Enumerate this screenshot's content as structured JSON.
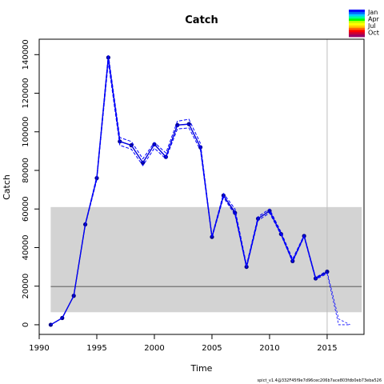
{
  "chart_data": {
    "type": "line",
    "title": "Catch",
    "xlabel": "Time",
    "ylabel": "Catch",
    "xlim": [
      1990,
      2018.2
    ],
    "ylim": [
      -5000,
      148000
    ],
    "xticks": [
      1990,
      1995,
      2000,
      2005,
      2010,
      2015
    ],
    "yticks": [
      0,
      20000,
      40000,
      60000,
      80000,
      100000,
      120000,
      140000
    ],
    "grid": false,
    "band": {
      "x": [
        1991,
        2018
      ],
      "y": [
        6500,
        61000
      ],
      "color": "#d3d3d3"
    },
    "hline": {
      "y": 19800,
      "color": "#808080"
    },
    "vline": {
      "x": 2015,
      "color": "#bebebe"
    },
    "series": [
      {
        "kind": "observed",
        "color": "#00008b",
        "x": [
          1991,
          1992,
          1993,
          1994,
          1995,
          1996,
          1997,
          1998,
          1999,
          2000,
          2001,
          2002,
          2003,
          2004,
          2005,
          2006,
          2007,
          2008,
          2009,
          2010,
          2011,
          2012,
          2013,
          2014,
          2015
        ],
        "values": [
          0,
          3500,
          15000,
          52000,
          76000,
          138500,
          95000,
          93000,
          84000,
          93500,
          87000,
          103500,
          104000,
          92000,
          45500,
          67000,
          58000,
          30000,
          55000,
          59000,
          47000,
          33000,
          46000,
          24000,
          27500
        ]
      },
      {
        "kind": "fit",
        "color": "#0000ff",
        "x": [
          1991,
          1992,
          1993,
          1994,
          1995,
          1996,
          1997,
          1998,
          1999,
          2000,
          2001,
          2002,
          2003,
          2004,
          2005,
          2006,
          2007,
          2008,
          2009,
          2010,
          2011,
          2012,
          2013,
          2014,
          2015
        ],
        "values": [
          0,
          3500,
          15000,
          52000,
          76000,
          138000,
          95000,
          93000,
          84000,
          93500,
          87000,
          103500,
          104000,
          92000,
          45500,
          67000,
          58500,
          30000,
          55000,
          59000,
          47000,
          33000,
          46000,
          24000,
          27000
        ]
      },
      {
        "kind": "upper",
        "color": "#0000ff",
        "x": [
          1991,
          1992,
          1993,
          1994,
          1995,
          1996,
          1997,
          1998,
          1999,
          2000,
          2001,
          2002,
          2003,
          2004,
          2005,
          2006,
          2007,
          2008,
          2009,
          2010,
          2011,
          2012,
          2013,
          2014,
          2015
        ],
        "values": [
          0,
          3500,
          15000,
          52000,
          77000,
          140000,
          97000,
          95000,
          86000,
          94500,
          89000,
          105500,
          106500,
          94000,
          46000,
          68000,
          60000,
          31000,
          56000,
          60000,
          48000,
          34000,
          46500,
          24500,
          28000
        ]
      },
      {
        "kind": "lower",
        "color": "#0000ff",
        "x": [
          1991,
          1992,
          1993,
          1994,
          1995,
          1996,
          1997,
          1998,
          1999,
          2000,
          2001,
          2002,
          2003,
          2004,
          2005,
          2006,
          2007,
          2008,
          2009,
          2010,
          2011,
          2012,
          2013,
          2014,
          2015
        ],
        "values": [
          0,
          3500,
          15000,
          51500,
          75000,
          136000,
          93000,
          91000,
          82500,
          91500,
          86000,
          101500,
          102000,
          90500,
          45000,
          66000,
          57000,
          29500,
          54000,
          58000,
          46500,
          32500,
          45500,
          23500,
          26500
        ]
      },
      {
        "kind": "pred-upper",
        "color": "#0000ff",
        "x": [
          2015,
          2016,
          2017
        ],
        "values": [
          27500,
          3000,
          0
        ]
      },
      {
        "kind": "pred-lower",
        "color": "#0000ff",
        "x": [
          2015,
          2016,
          2017
        ],
        "values": [
          26500,
          0,
          0
        ]
      }
    ]
  },
  "legend": {
    "labels": [
      "Jan",
      "Apr",
      "Jul",
      "Oct"
    ],
    "colors": [
      "#0000ff",
      "#0066ff",
      "#00ccff",
      "#00ff99",
      "#00ff00",
      "#ccff00",
      "#ffff00",
      "#ffcc00",
      "#ff6600",
      "#ff0000",
      "#cc0033",
      "#990066"
    ]
  },
  "footer": "spict_v1.4@332F45f9e7d96cec206b7ace803fdb0eb73eba526"
}
